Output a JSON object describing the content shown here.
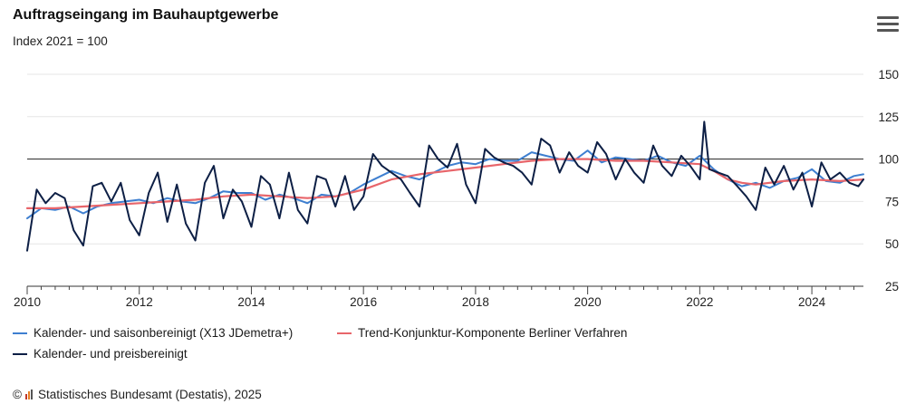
{
  "header": {
    "title": "Auftragseingang im Bauhauptgewerbe",
    "subtitle": "Index 2021 = 100",
    "menu_icon": "hamburger-menu-icon"
  },
  "legend": [
    {
      "name": "Kalender- und saisonbereinigt (X13 JDemetra+)",
      "color": "#3e7fd0"
    },
    {
      "name": "Trend-Konjunktur-Komponente Berliner Verfahren",
      "color": "#e8656a"
    },
    {
      "name": "Kalender- und preisbereinigt",
      "color": "#0d1f45"
    }
  ],
  "credit": {
    "copyright": "©",
    "text": "Statistisches Bundesamt (Destatis), 2025"
  },
  "chart_data": {
    "type": "line",
    "x_unit": "year",
    "xlim": [
      2010,
      2024.92
    ],
    "ylim": [
      25,
      150
    ],
    "y_ticks": [
      "150",
      "125",
      "100",
      "75",
      "50",
      "25"
    ],
    "x_ticks": [
      "2010",
      "2012",
      "2014",
      "2016",
      "2018",
      "2020",
      "2022",
      "2024"
    ],
    "y_axis_position": "right",
    "reference_line": 100,
    "grid": true,
    "legend_position": "bottom-left",
    "series": [
      {
        "name": "Kalender- und saisonbereinigt (X13 JDemetra+)",
        "color": "#3e7fd0",
        "x": [
          2010.0,
          2010.25,
          2010.5,
          2010.75,
          2011.0,
          2011.25,
          2011.5,
          2011.75,
          2012.0,
          2012.25,
          2012.5,
          2012.75,
          2013.0,
          2013.25,
          2013.5,
          2013.75,
          2014.0,
          2014.25,
          2014.5,
          2014.75,
          2015.0,
          2015.25,
          2015.5,
          2015.75,
          2016.0,
          2016.25,
          2016.5,
          2016.75,
          2017.0,
          2017.25,
          2017.5,
          2017.75,
          2018.0,
          2018.25,
          2018.5,
          2018.75,
          2019.0,
          2019.25,
          2019.5,
          2019.75,
          2020.0,
          2020.25,
          2020.5,
          2020.75,
          2021.0,
          2021.25,
          2021.5,
          2021.75,
          2022.0,
          2022.25,
          2022.5,
          2022.75,
          2023.0,
          2023.25,
          2023.5,
          2023.75,
          2024.0,
          2024.25,
          2024.5,
          2024.75,
          2024.92
        ],
        "values": [
          65,
          71,
          70,
          72,
          68,
          72,
          74,
          75,
          76,
          74,
          77,
          75,
          74,
          77,
          81,
          80,
          80,
          76,
          79,
          77,
          74,
          79,
          78,
          80,
          85,
          89,
          93,
          90,
          88,
          92,
          96,
          98,
          97,
          100,
          99,
          99,
          104,
          102,
          100,
          99,
          105,
          98,
          101,
          100,
          99,
          102,
          98,
          96,
          102,
          94,
          88,
          84,
          86,
          83,
          87,
          89,
          94,
          87,
          86,
          90,
          91
        ]
      },
      {
        "name": "Trend-Konjunktur-Komponente Berliner Verfahren",
        "color": "#e8656a",
        "x": [
          2010.0,
          2010.5,
          2011.0,
          2011.5,
          2012.0,
          2012.5,
          2013.0,
          2013.5,
          2014.0,
          2014.5,
          2015.0,
          2015.5,
          2016.0,
          2016.5,
          2017.0,
          2017.5,
          2018.0,
          2018.5,
          2019.0,
          2019.5,
          2020.0,
          2020.5,
          2021.0,
          2021.5,
          2022.0,
          2022.25,
          2022.5,
          2022.75,
          2023.0,
          2023.5,
          2024.0,
          2024.5,
          2024.92
        ],
        "values": [
          71,
          71,
          72,
          73,
          74,
          75,
          76,
          78,
          79,
          78,
          77,
          78,
          82,
          88,
          91,
          93,
          95,
          97,
          99,
          100,
          100,
          99,
          99,
          98,
          97,
          93,
          88,
          86,
          85,
          87,
          88,
          87,
          88
        ]
      },
      {
        "name": "Kalender- und preisbereinigt",
        "color": "#0d1f45",
        "x": [
          2010.0,
          2010.17,
          2010.33,
          2010.5,
          2010.67,
          2010.83,
          2011.0,
          2011.17,
          2011.33,
          2011.5,
          2011.67,
          2011.83,
          2012.0,
          2012.17,
          2012.33,
          2012.5,
          2012.67,
          2012.83,
          2013.0,
          2013.17,
          2013.33,
          2013.5,
          2013.67,
          2013.83,
          2014.0,
          2014.17,
          2014.33,
          2014.5,
          2014.67,
          2014.83,
          2015.0,
          2015.17,
          2015.33,
          2015.5,
          2015.67,
          2015.83,
          2016.0,
          2016.17,
          2016.33,
          2016.5,
          2016.67,
          2016.83,
          2017.0,
          2017.17,
          2017.33,
          2017.5,
          2017.67,
          2017.83,
          2018.0,
          2018.17,
          2018.33,
          2018.5,
          2018.67,
          2018.83,
          2019.0,
          2019.17,
          2019.33,
          2019.5,
          2019.67,
          2019.83,
          2020.0,
          2020.17,
          2020.33,
          2020.5,
          2020.67,
          2020.83,
          2021.0,
          2021.17,
          2021.33,
          2021.5,
          2021.67,
          2021.83,
          2022.0,
          2022.08,
          2022.17,
          2022.33,
          2022.5,
          2022.67,
          2022.83,
          2023.0,
          2023.17,
          2023.33,
          2023.5,
          2023.67,
          2023.83,
          2024.0,
          2024.17,
          2024.33,
          2024.5,
          2024.67,
          2024.83,
          2024.92
        ],
        "values": [
          46,
          82,
          74,
          80,
          77,
          58,
          49,
          84,
          86,
          75,
          86,
          64,
          55,
          80,
          92,
          63,
          85,
          62,
          52,
          86,
          96,
          65,
          82,
          75,
          60,
          90,
          85,
          65,
          92,
          70,
          62,
          90,
          88,
          72,
          90,
          70,
          78,
          103,
          96,
          92,
          88,
          80,
          72,
          108,
          100,
          95,
          109,
          85,
          74,
          106,
          101,
          98,
          96,
          92,
          85,
          112,
          108,
          92,
          104,
          96,
          92,
          110,
          103,
          88,
          100,
          92,
          86,
          108,
          96,
          90,
          102,
          96,
          88,
          122,
          94,
          92,
          90,
          84,
          78,
          70,
          95,
          85,
          96,
          82,
          92,
          72,
          98,
          88,
          92,
          86,
          84,
          88
        ]
      }
    ]
  }
}
